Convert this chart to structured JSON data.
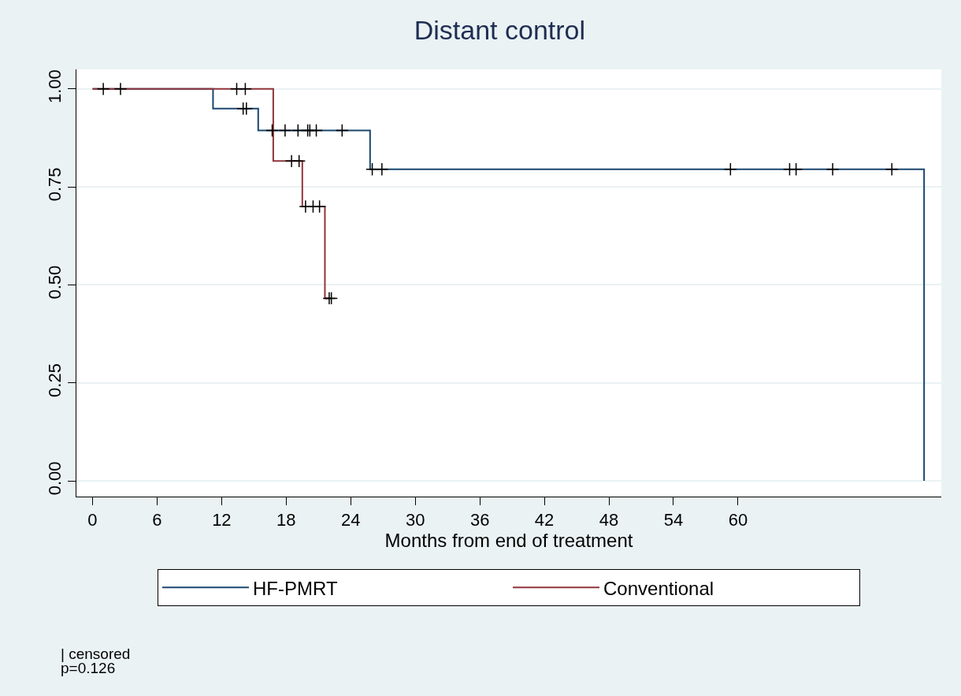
{
  "chart_data": {
    "type": "step",
    "title": "Distant control",
    "xlabel": "Months from end of treatment",
    "xlim": [
      -1.5,
      78.9
    ],
    "xticks": [
      0,
      6,
      12,
      18,
      24,
      30,
      36,
      42,
      48,
      54,
      60
    ],
    "ylim": [
      -0.04,
      1.05
    ],
    "yticks": [
      {
        "value": 0,
        "label": "0.00"
      },
      {
        "value": 0.25,
        "label": "0.25"
      },
      {
        "value": 0.5,
        "label": "0.50"
      },
      {
        "value": 0.75,
        "label": "0.75"
      },
      {
        "value": 1,
        "label": "1.00"
      }
    ],
    "grid": "y",
    "legend": "bottom",
    "line_style": "solid",
    "marker": "none",
    "series": [
      {
        "name": "HF-PMRT",
        "color": "#1a476f",
        "x": [
          0,
          11.2,
          15.4,
          25.8,
          77.3,
          77.3
        ],
        "values": [
          1,
          0.95,
          0.894,
          0.795,
          0.795,
          0
        ]
      },
      {
        "name": "Conventional",
        "color": "#90353b",
        "x": [
          0,
          16.8,
          19.5,
          21.6,
          22.2
        ],
        "values": [
          1,
          0.816,
          0.7,
          0.466,
          0.466
        ]
      },
      {
        "type": "scatter",
        "marker": "cross",
        "color": "#000000",
        "x": [
          14.0,
          14.3,
          16.7,
          17.9,
          19.1,
          20.0,
          20.2,
          20.8,
          23.2,
          26.0,
          26.9,
          59.3,
          64.8,
          65.4,
          68.8,
          74.3
        ],
        "values": [
          0.95,
          0.95,
          0.894,
          0.894,
          0.894,
          0.894,
          0.894,
          0.894,
          0.894,
          0.795,
          0.795,
          0.795,
          0.795,
          0.795,
          0.795,
          0.795
        ]
      },
      {
        "type": "scatter",
        "marker": "cross",
        "color": "#000000",
        "x": [
          1.0,
          2.6,
          13.4,
          14.2,
          18.5,
          19.2,
          19.8,
          20.5,
          21.1,
          22.0,
          22.2
        ],
        "values": [
          1,
          1,
          1,
          1,
          0.816,
          0.816,
          0.7,
          0.7,
          0.7,
          0.466,
          0.466
        ]
      }
    ],
    "annotations": [
      "| censored",
      "p=0.126"
    ]
  }
}
